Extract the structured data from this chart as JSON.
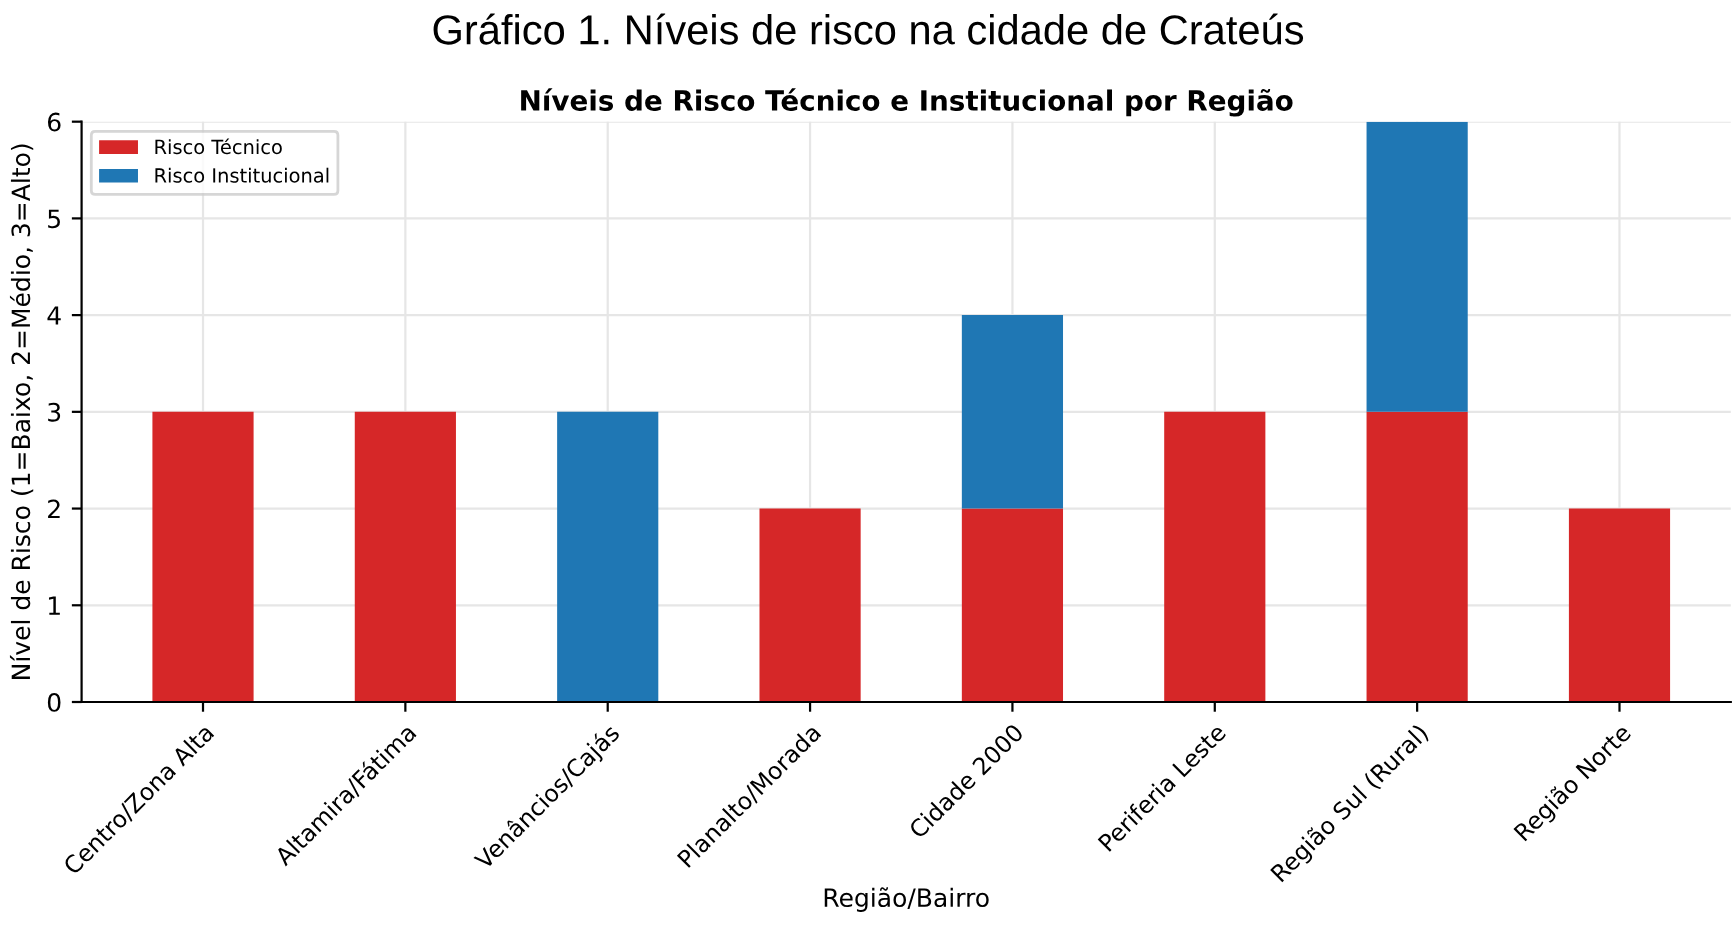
{
  "chart_data": {
    "type": "bar",
    "title": "Gráfico 1. Níveis de risco na cidade de Crateús",
    "subtitle": "Níveis de Risco Técnico e Institucional por Região",
    "xlabel": "Região/Bairro",
    "ylabel": "Nível de Risco (1=Baixo, 2=Médio, 3=Alto)",
    "categories": [
      "Centro/Zona Alta",
      "Altamira/Fátima",
      "Venâncios/Cajás",
      "Planalto/Morada",
      "Cidade 2000",
      "Periferia Leste",
      "Região Sul (Rural)",
      "Região Norte"
    ],
    "series": [
      {
        "name": "Risco Técnico",
        "color": "#d62728",
        "values": [
          3,
          3,
          0,
          2,
          2,
          3,
          3,
          2
        ]
      },
      {
        "name": "Risco Institucional",
        "color": "#1f77b4",
        "values": [
          0,
          0,
          3,
          0,
          2,
          0,
          3,
          0
        ]
      }
    ],
    "stacked": true,
    "ylim": [
      0,
      6
    ],
    "yticks": [
      0,
      1,
      2,
      3,
      4,
      5,
      6
    ],
    "grid": true,
    "legend": "top left"
  }
}
